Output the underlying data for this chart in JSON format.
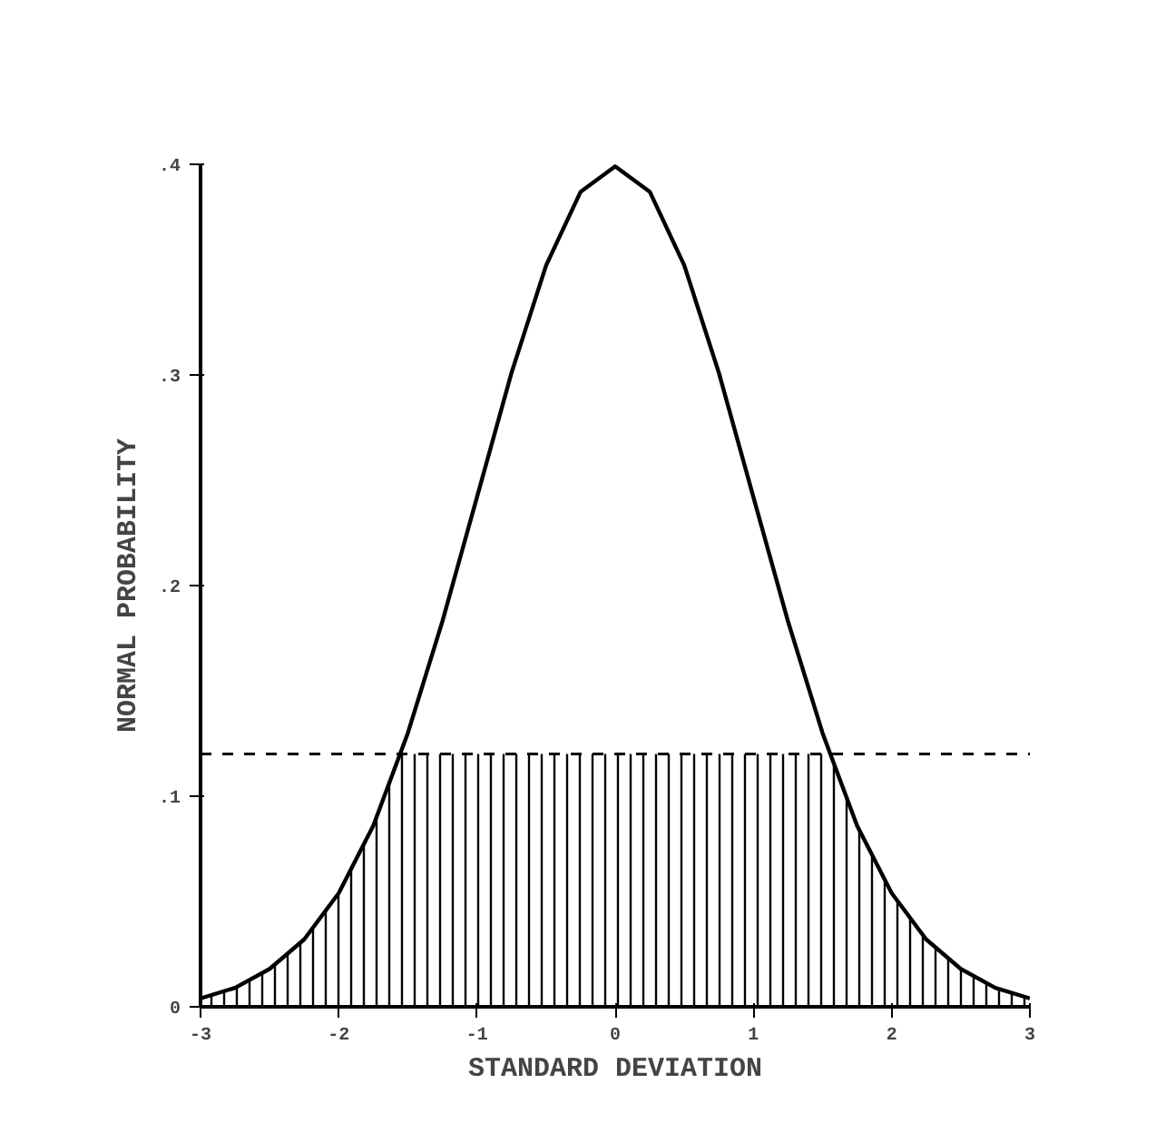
{
  "chart_data": {
    "type": "line",
    "xlabel": "STANDARD DEVIATION",
    "ylabel": "NORMAL PROBABILITY",
    "xlim": [
      -3,
      3
    ],
    "ylim": [
      0,
      0.4
    ],
    "xticks": [
      -3,
      -2,
      -1,
      0,
      1,
      2,
      3
    ],
    "yticks": [
      {
        "value": 0,
        "label": "0"
      },
      {
        "value": 0.1,
        "label": ".1"
      },
      {
        "value": 0.2,
        "label": ".2"
      },
      {
        "value": 0.3,
        "label": ".3"
      },
      {
        "value": 0.4,
        "label": ".4"
      }
    ],
    "grid": false,
    "series": [
      {
        "type": "area",
        "color": "#000000",
        "x": [
          -3,
          -2.75,
          -2.5,
          -2.25,
          -2,
          -1.75,
          -1.55,
          -1.25,
          -1,
          -0.5,
          0,
          0.5,
          1,
          1.25,
          1.55,
          1.75,
          2,
          2.25,
          2.5,
          2.75,
          3
        ],
        "values": [
          0.004,
          0.009,
          0.018,
          0.032,
          0.054,
          0.086,
          0.12,
          0.12,
          0.12,
          0.12,
          0.12,
          0.12,
          0.12,
          0.12,
          0.12,
          0.086,
          0.054,
          0.032,
          0.018,
          0.009,
          0.004
        ]
      },
      {
        "color": "#000000",
        "x": [
          -3,
          -2.75,
          -2.5,
          -2.25,
          -2,
          -1.75,
          -1.5,
          -1.25,
          -1,
          -0.75,
          -0.5,
          -0.25,
          0,
          0.25,
          0.5,
          0.75,
          1,
          1.25,
          1.5,
          1.75,
          2,
          2.25,
          2.5,
          2.75,
          3
        ],
        "values": [
          0.004,
          0.009,
          0.018,
          0.032,
          0.054,
          0.086,
          0.13,
          0.183,
          0.242,
          0.301,
          0.352,
          0.387,
          0.399,
          0.387,
          0.352,
          0.301,
          0.242,
          0.183,
          0.13,
          0.086,
          0.054,
          0.032,
          0.018,
          0.009,
          0.004
        ]
      }
    ],
    "ref_lines": [
      {
        "axis": "y",
        "value": 0.12,
        "line_style": "dashed",
        "color": "#000000"
      }
    ]
  }
}
